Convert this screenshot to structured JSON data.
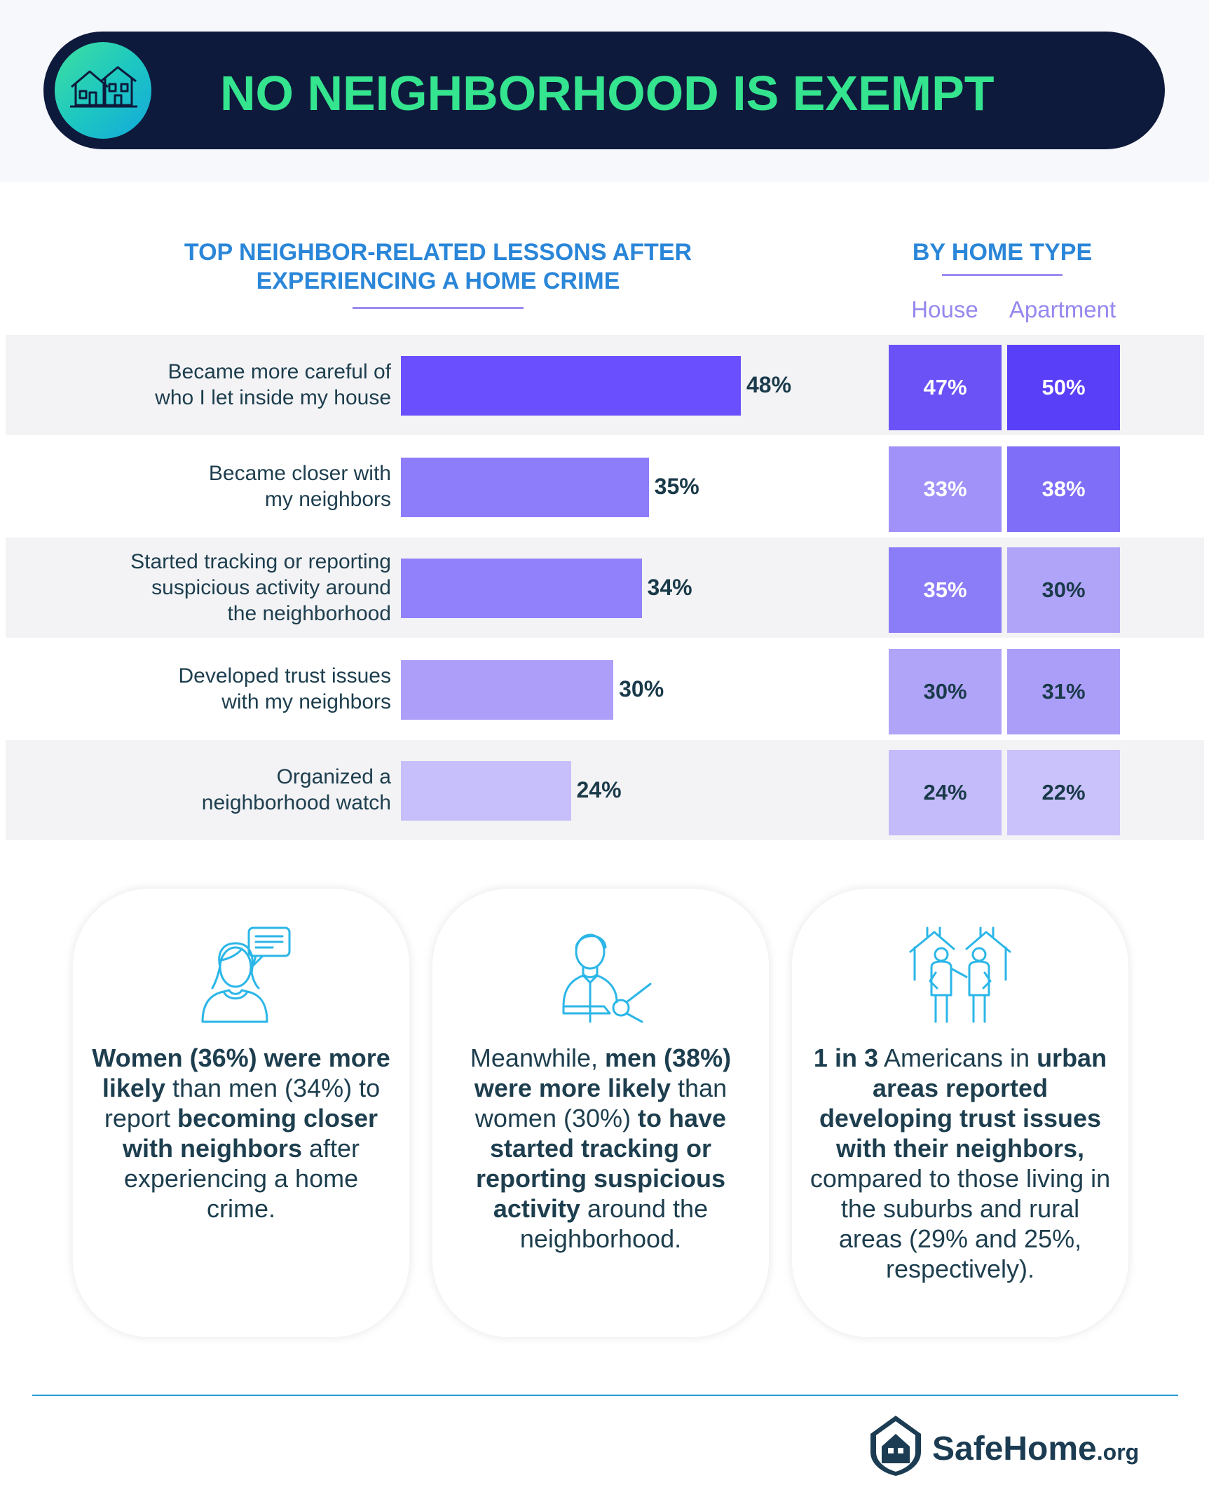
{
  "banner": {
    "title": "NO NEIGHBORHOOD IS EXEMPT"
  },
  "chart_title_left": [
    "TOP NEIGHBOR-RELATED LESSONS AFTER",
    "EXPERIENCING A HOME CRIME"
  ],
  "chart_title_right": "BY HOME TYPE",
  "columns": {
    "house": "House",
    "apartment": "Apartment"
  },
  "chart_data": {
    "type": "bar",
    "categories": [
      "Became more careful of who I let inside my house",
      "Became closer with my neighbors",
      "Started tracking or reporting suspicious activity around the neighborhood",
      "Developed trust issues with my neighbors",
      "Organized a neighborhood watch"
    ],
    "category_lines": [
      [
        "Became more careful of",
        "who I let inside my house"
      ],
      [
        "Became closer with",
        "my neighbors"
      ],
      [
        "Started tracking or reporting",
        "suspicious activity around",
        "the neighborhood"
      ],
      [
        "Developed trust issues",
        "with my neighbors"
      ],
      [
        "Organized a",
        "neighborhood watch"
      ]
    ],
    "values": [
      48,
      35,
      34,
      30,
      24
    ],
    "value_labels": [
      "48%",
      "35%",
      "34%",
      "30%",
      "24%"
    ],
    "by_home_type": {
      "house": [
        47,
        33,
        35,
        30,
        24
      ],
      "house_labels": [
        "47%",
        "33%",
        "35%",
        "30%",
        "24%"
      ],
      "apartment": [
        50,
        38,
        30,
        31,
        22
      ],
      "apartment_labels": [
        "50%",
        "38%",
        "30%",
        "31%",
        "22%"
      ]
    },
    "unit": "%",
    "colors": {
      "bar_scale": [
        "#6a4ffe",
        "#8d7dfb",
        "#9181fa",
        "#ad9ff9",
        "#c7bffb"
      ],
      "cell_scale": {
        "50": "#5a3ff8",
        "47": "#6a52f6",
        "38": "#7f6ef7",
        "35": "#8b7cf7",
        "33": "#a092f8",
        "31": "#ab9ef8",
        "30": "#b0a4f9",
        "24": "#c4bbfa",
        "22": "#cac2fb"
      }
    }
  },
  "cards": [
    {
      "icon": "woman-speech-bubble-icon",
      "segments": [
        {
          "t": "Women (36%) were more likely",
          "b": true
        },
        {
          "t": " than men (34%) to report ",
          "b": false
        },
        {
          "t": "becoming closer with neighbors",
          "b": true
        },
        {
          "t": " after experiencing a home crime.",
          "b": false
        }
      ]
    },
    {
      "icon": "man-magnifier-icon",
      "segments": [
        {
          "t": "Meanwhile, ",
          "b": false
        },
        {
          "t": "men (38%) were more likely",
          "b": true
        },
        {
          "t": " than women (30%) ",
          "b": false
        },
        {
          "t": "to have started tracking or reporting suspicious activity",
          "b": true
        },
        {
          "t": " around the neighborhood.",
          "b": false
        }
      ]
    },
    {
      "icon": "neighbors-houses-icon",
      "segments": [
        {
          "t": "1 in 3",
          "b": true
        },
        {
          "t": " Americans in ",
          "b": false
        },
        {
          "t": "urban areas reported developing trust issues with their neighbors,",
          "b": true
        },
        {
          "t": " compared to those living in the suburbs and rural areas (29% and 25%, respectively).",
          "b": false
        }
      ]
    }
  ],
  "logo": {
    "name": "SafeHome",
    "tld": ".org",
    "icon": "house-shield-icon"
  }
}
